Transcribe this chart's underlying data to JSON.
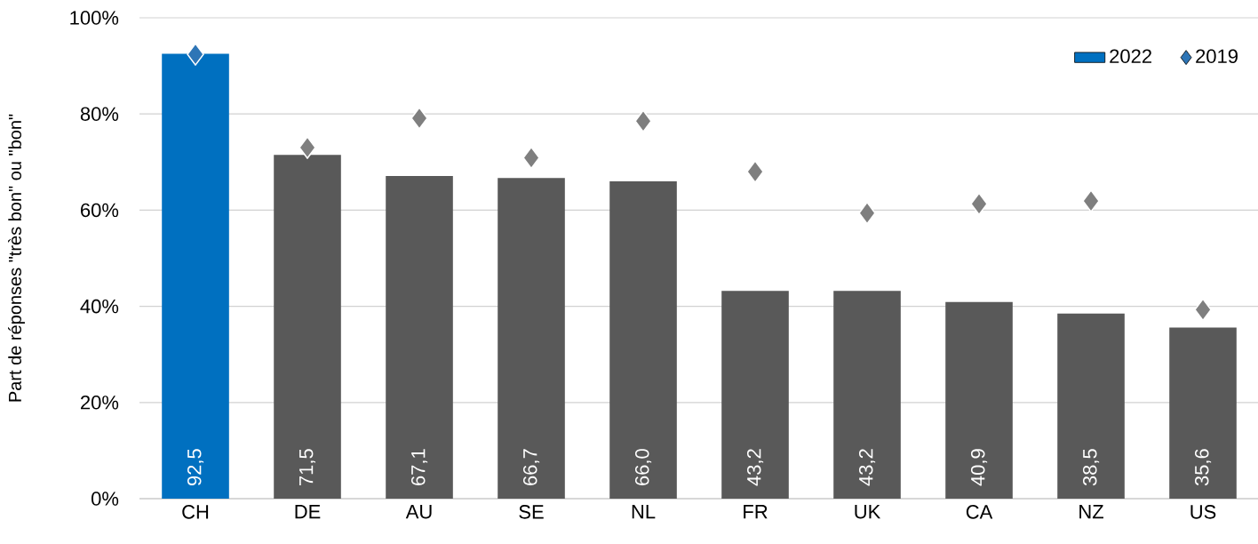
{
  "chart_data": {
    "type": "bar",
    "ylabel": "Part de réponses \"très bon\" ou \"bon\"",
    "categories": [
      "CH",
      "DE",
      "AU",
      "SE",
      "NL",
      "FR",
      "UK",
      "CA",
      "NZ",
      "US"
    ],
    "ylim": [
      0,
      100
    ],
    "yticks": [
      {
        "value": 0,
        "label": "0%"
      },
      {
        "value": 20,
        "label": "20%"
      },
      {
        "value": 40,
        "label": "40%"
      },
      {
        "value": 60,
        "label": "60%"
      },
      {
        "value": 80,
        "label": "80%"
      },
      {
        "value": 100,
        "label": "100%"
      }
    ],
    "grid": "y",
    "legend": "top right",
    "series": [
      {
        "name": "2022",
        "color": "#0070c0",
        "colors": [
          "#0070c0",
          "#595959",
          "#595959",
          "#595959",
          "#595959",
          "#595959",
          "#595959",
          "#595959",
          "#595959",
          "#595959"
        ],
        "values": [
          92.5,
          71.5,
          67.1,
          66.7,
          66.0,
          43.2,
          43.2,
          40.9,
          38.5,
          35.6
        ],
        "value_labels": [
          "92,5",
          "71,5",
          "67,1",
          "66,7",
          "66,0",
          "43,2",
          "43,2",
          "40,9",
          "38,5",
          "35,6"
        ]
      },
      {
        "name": "2019",
        "type": "scatter",
        "marker": "diamond",
        "color": "#2e75b6",
        "colors": [
          "#2e75b6",
          "#7f7f7f",
          "#7f7f7f",
          "#7f7f7f",
          "#7f7f7f",
          "#7f7f7f",
          "#7f7f7f",
          "#7f7f7f",
          "#7f7f7f",
          "#7f7f7f"
        ],
        "values": [
          92.4,
          73.0,
          79.1,
          70.9,
          78.5,
          68.0,
          59.4,
          61.3,
          61.9,
          39.3
        ]
      }
    ]
  }
}
